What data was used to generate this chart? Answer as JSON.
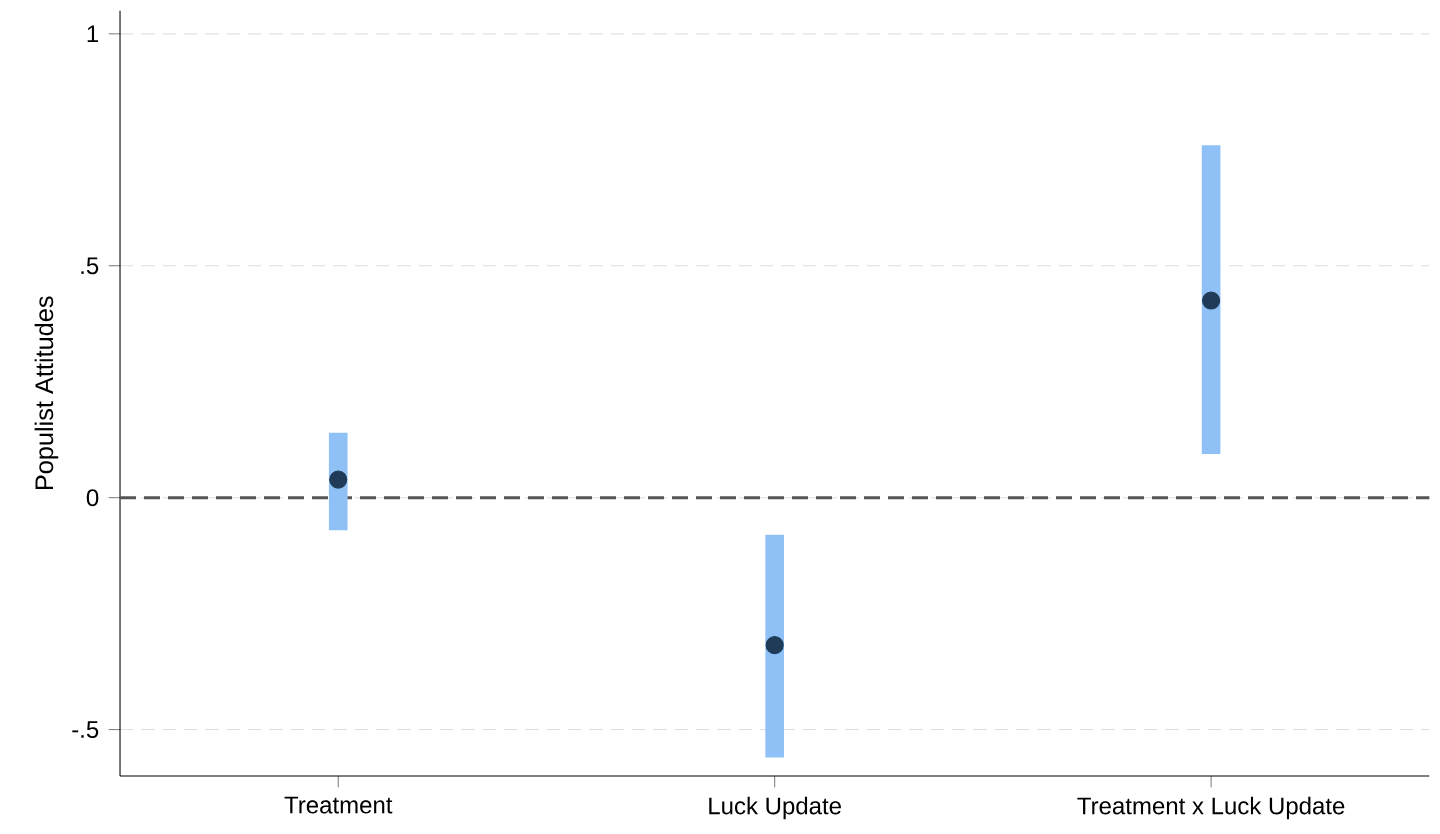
{
  "chart_data": {
    "type": "scatter",
    "ylabel": "Populist Attitudes",
    "categories": [
      "Treatment",
      "Luck Update",
      "Treatment x Luck Update"
    ],
    "series": [
      {
        "color": "#1f3b57",
        "values": [
          0.039,
          -0.318,
          0.425
        ],
        "errors": [
          [
            -0.07,
            0.14
          ],
          [
            -0.56,
            -0.08
          ],
          [
            0.094,
            0.76
          ]
        ]
      }
    ],
    "ylim": [
      -0.6,
      1.05
    ],
    "yticks": [
      {
        "value": -0.5,
        "label": "-.5"
      },
      0,
      {
        "value": 0.5,
        "label": ".5"
      },
      1
    ],
    "grid": "y",
    "marker": "circle",
    "ref_lines": [
      {
        "axis": "y",
        "value": 0,
        "color": "#555555",
        "line_style": "dashed"
      }
    ]
  }
}
